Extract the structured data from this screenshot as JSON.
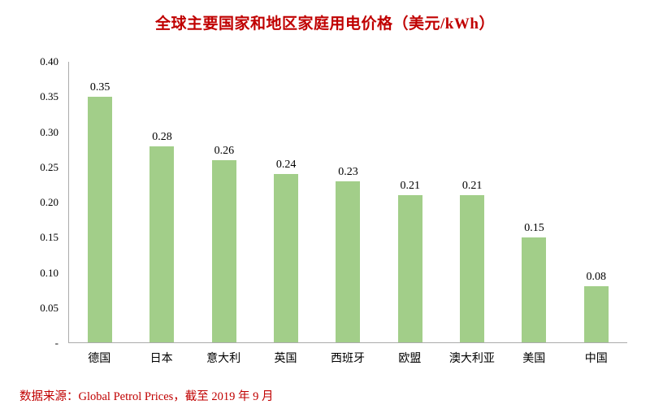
{
  "chart": {
    "title": "全球主要国家和地区家庭用电价格（美元/kWh）"
  },
  "chart_data": {
    "type": "bar",
    "title": "全球主要国家和地区家庭用电价格（美元/kWh）",
    "categories": [
      "德国",
      "日本",
      "意大利",
      "英国",
      "西班牙",
      "欧盟",
      "澳大利亚",
      "美国",
      "中国"
    ],
    "values": [
      0.35,
      0.28,
      0.26,
      0.24,
      0.23,
      0.21,
      0.21,
      0.15,
      0.08
    ],
    "value_labels": [
      "0.35",
      "0.28",
      "0.26",
      "0.24",
      "0.23",
      "0.21",
      "0.21",
      "0.15",
      "0.08"
    ],
    "xlabel": "",
    "ylabel": "",
    "ylim": [
      0,
      0.4
    ],
    "y_ticks": [
      "0.40",
      "0.35",
      "0.30",
      "0.25",
      "0.20",
      "0.15",
      "0.10",
      "0.05",
      "-"
    ],
    "grid": false,
    "legend": false,
    "bar_color": "#A2CE89"
  },
  "footer": {
    "source": "数据来源：Global Petrol Prices，截至 2019 年 9 月"
  },
  "colors": {
    "title": "#C00000",
    "source": "#C00000",
    "axis": "#ABABAB",
    "bar": "#A2CE89",
    "text": "#000000"
  }
}
